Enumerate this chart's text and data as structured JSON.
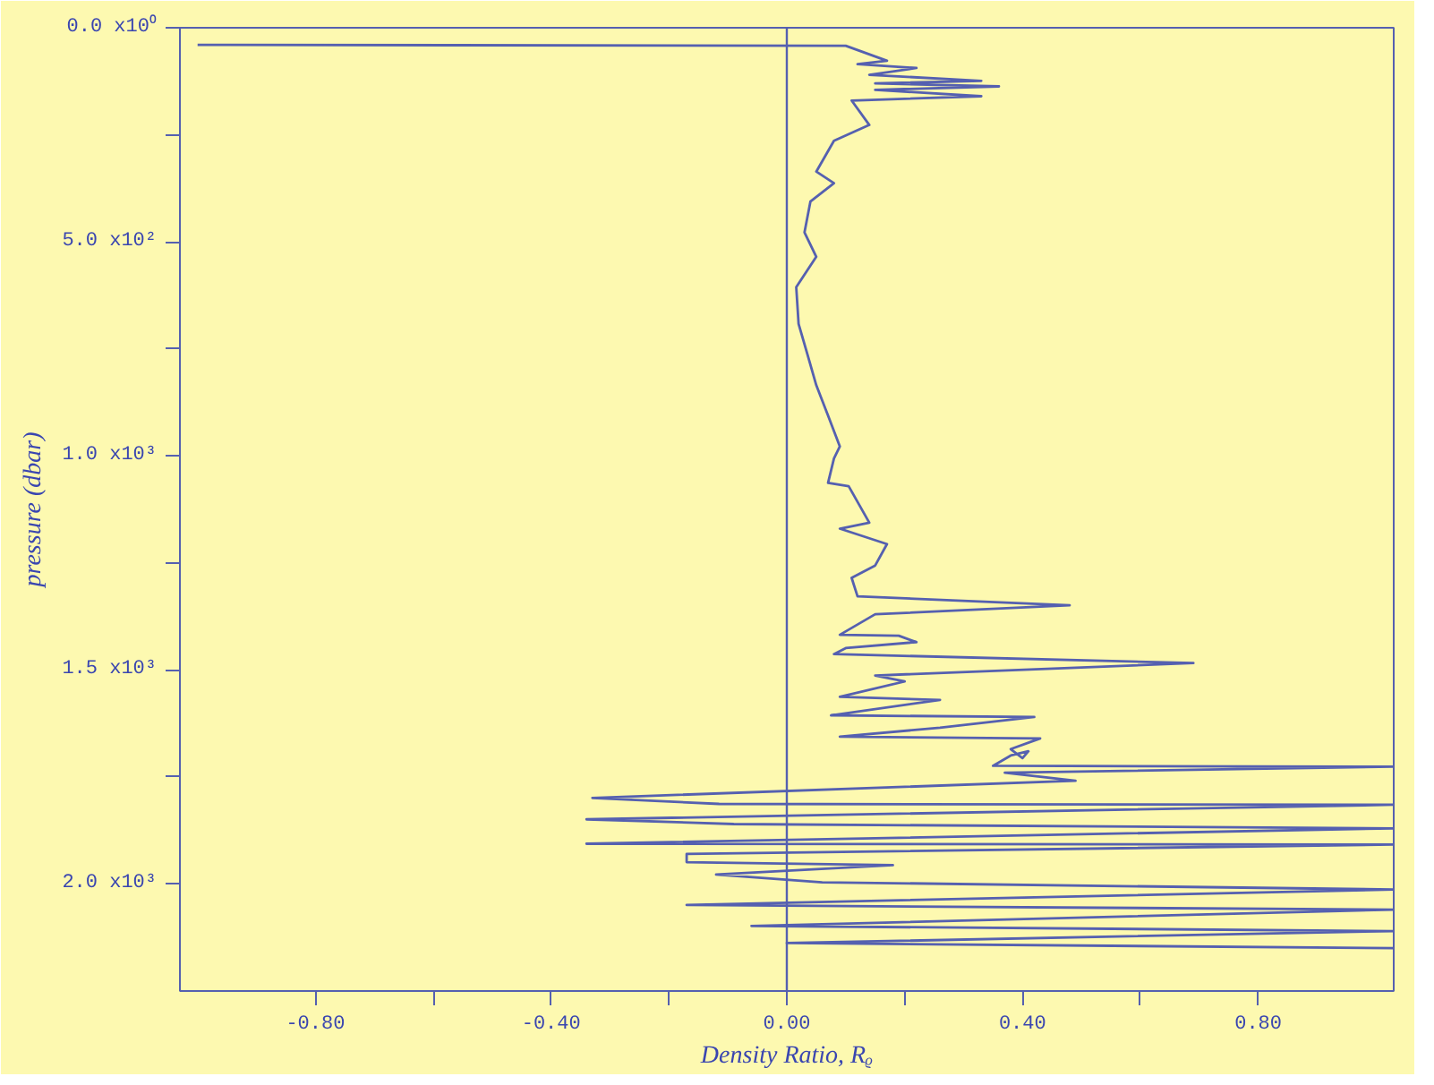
{
  "chart_data": {
    "type": "line",
    "xlabel": "Density Ratio, Rᵨ",
    "ylabel": "pressure (dbar)",
    "xlim": [
      -1.03,
      1.03
    ],
    "ylim": [
      2250,
      0
    ],
    "xticks": [
      {
        "value": -0.8,
        "label": "-0.80"
      },
      {
        "value": -0.6,
        "label": null
      },
      {
        "value": -0.4,
        "label": "-0.40"
      },
      {
        "value": -0.2,
        "label": null
      },
      {
        "value": 0,
        "label": "0.00"
      },
      {
        "value": 0.2,
        "label": null
      },
      {
        "value": 0.4,
        "label": "0.40"
      },
      {
        "value": 0.6,
        "label": null
      },
      {
        "value": 0.8,
        "label": "0.80"
      }
    ],
    "yticks": [
      {
        "value": 0,
        "label": "0.0 x10⁰"
      },
      {
        "value": 250,
        "label": null
      },
      {
        "value": 500,
        "label": "5.0 x10²"
      },
      {
        "value": 750,
        "label": null
      },
      {
        "value": 1000,
        "label": "1.0 x10³"
      },
      {
        "value": 1250,
        "label": null
      },
      {
        "value": 1500,
        "label": "1.5 x10³"
      },
      {
        "value": 1750,
        "label": null
      },
      {
        "value": 2000,
        "label": "2.0 x10³"
      }
    ],
    "ref_lines": [
      {
        "axis": "x",
        "value": 0,
        "color": "#5560b0"
      }
    ],
    "grid": false,
    "marker": "none",
    "line_style": "solid",
    "series": [
      {
        "color": "#5560b0",
        "x": [
          -1.0,
          0.1,
          0.17,
          0.12,
          0.22,
          0.14,
          0.33,
          0.15,
          0.36,
          0.15,
          0.33,
          0.11,
          0.14,
          0.08,
          0.05,
          0.08,
          0.04,
          0.03,
          0.05,
          0.016,
          0.02,
          0.035,
          0.05,
          0.07,
          0.09,
          0.08,
          0.07,
          0.105,
          0.14,
          0.09,
          0.17,
          0.15,
          0.11,
          0.12,
          0.48,
          0.15,
          0.09,
          0.19,
          0.22,
          0.1,
          0.08,
          0.69,
          0.15,
          0.2,
          0.09,
          0.26,
          0.075,
          0.42,
          0.26,
          0.09,
          0.43,
          0.38,
          0.4,
          0.41,
          0.38,
          0.35,
          1.03,
          0.37,
          0.49,
          -0.33,
          -0.115,
          1.03,
          -0.34,
          -0.09,
          1.03,
          -0.34,
          1.03,
          -0.17,
          -0.17,
          0.18,
          -0.12,
          0.06,
          1.03,
          -0.17,
          1.03,
          -0.06,
          1.03,
          0.0,
          1.03
        ],
        "values": [
          40,
          42,
          77,
          85,
          94,
          110,
          124,
          130,
          137,
          145,
          160,
          170,
          227,
          264,
          336,
          363,
          406,
          478,
          535,
          606,
          692,
          763,
          835,
          906,
          978,
          1006,
          1063,
          1071,
          1156,
          1170,
          1206,
          1256,
          1285,
          1328,
          1349,
          1370,
          1418,
          1420,
          1435,
          1449,
          1463,
          1484,
          1513,
          1527,
          1563,
          1570,
          1606,
          1610,
          1635,
          1656,
          1660,
          1685,
          1706,
          1690,
          1700,
          1724,
          1726,
          1740,
          1759,
          1799,
          1813,
          1815,
          1849,
          1860,
          1870,
          1906,
          1908,
          1930,
          1949,
          1956,
          1978,
          1996,
          2013,
          2049,
          2060,
          2098,
          2110,
          2138,
          2150
        ]
      }
    ]
  }
}
